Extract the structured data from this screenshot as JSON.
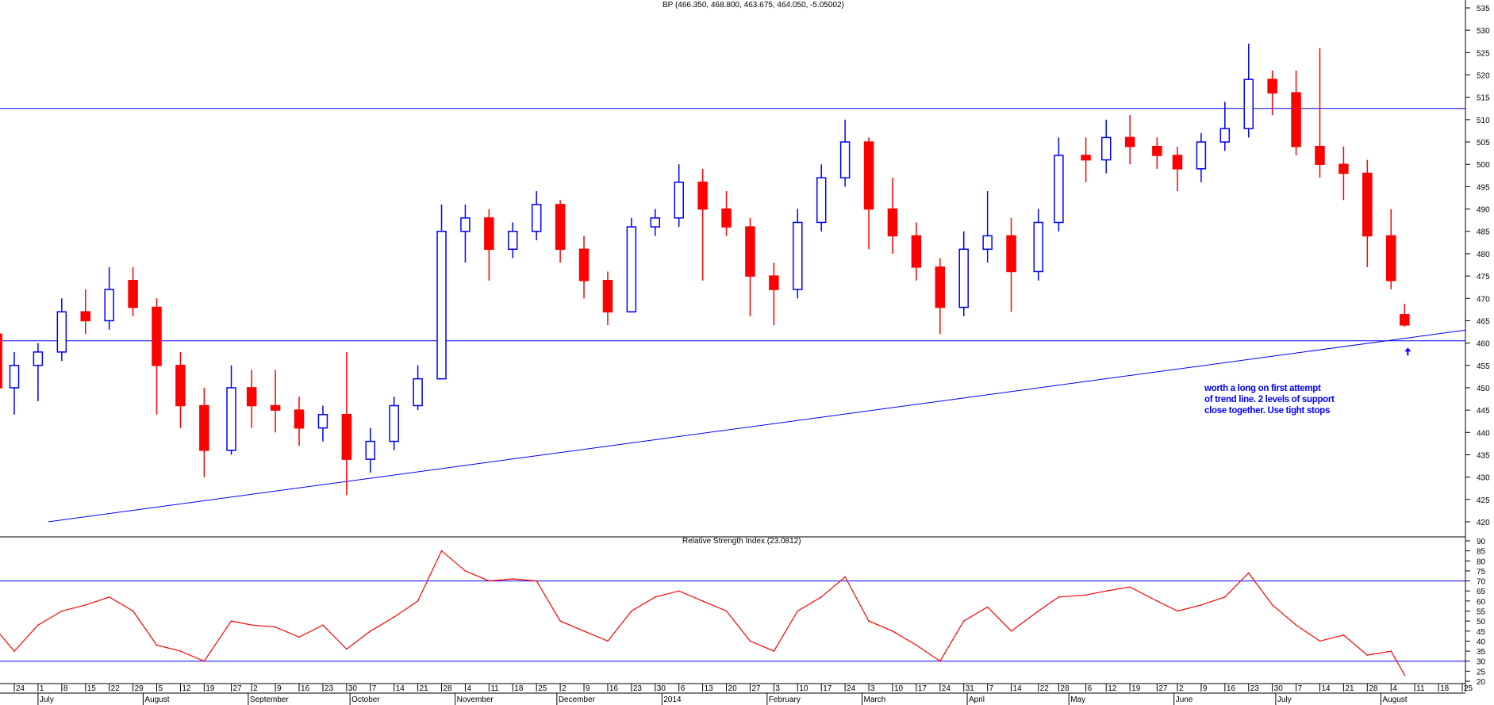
{
  "chart_data": [
    {
      "type": "candlestick",
      "title": "BP (466.350, 468.800, 463.675, 464.050, -5.05002)",
      "ylim": [
        417,
        537
      ],
      "yticks": [
        420,
        425,
        430,
        435,
        440,
        445,
        450,
        455,
        460,
        465,
        470,
        475,
        480,
        485,
        490,
        495,
        500,
        505,
        510,
        515,
        520,
        525,
        530,
        535
      ],
      "axis_position": "right",
      "colors": {
        "up": "#0000ff",
        "down": "#ff0000",
        "lines": "#0000ff"
      },
      "candles_columns": [
        "date",
        "open",
        "high",
        "low",
        "close"
      ],
      "candles": [
        [
          "2013-06-19",
          462,
          463,
          447,
          450
        ],
        [
          "2013-06-24",
          450,
          458,
          444,
          455
        ],
        [
          "2013-07-01",
          455,
          460,
          447,
          458
        ],
        [
          "2013-07-08",
          458,
          470,
          456,
          467
        ],
        [
          "2013-07-15",
          467,
          472,
          462,
          465
        ],
        [
          "2013-07-22",
          465,
          477,
          463,
          472
        ],
        [
          "2013-07-29",
          474,
          477,
          466,
          468
        ],
        [
          "2013-08-05",
          468,
          470,
          444,
          455
        ],
        [
          "2013-08-12",
          455,
          458,
          441,
          446
        ],
        [
          "2013-08-19",
          446,
          450,
          430,
          436
        ],
        [
          "2013-08-27",
          436,
          455,
          435,
          450
        ],
        [
          "2013-09-02",
          450,
          454,
          441,
          446
        ],
        [
          "2013-09-09",
          446,
          454,
          440,
          445
        ],
        [
          "2013-09-16",
          445,
          448,
          437,
          441
        ],
        [
          "2013-09-23",
          441,
          446,
          438,
          444
        ],
        [
          "2013-09-30",
          444,
          458,
          426,
          434
        ],
        [
          "2013-10-07",
          434,
          441,
          431,
          438
        ],
        [
          "2013-10-14",
          438,
          448,
          436,
          446
        ],
        [
          "2013-10-21",
          446,
          455,
          445,
          452
        ],
        [
          "2013-10-28",
          452,
          491,
          452,
          485
        ],
        [
          "2013-11-04",
          485,
          491,
          478,
          488
        ],
        [
          "2013-11-11",
          488,
          490,
          474,
          481
        ],
        [
          "2013-11-18",
          481,
          487,
          479,
          485
        ],
        [
          "2013-11-25",
          485,
          494,
          483,
          491
        ],
        [
          "2013-12-02",
          491,
          492,
          478,
          481
        ],
        [
          "2013-12-09",
          481,
          484,
          470,
          474
        ],
        [
          "2013-12-16",
          474,
          476,
          464,
          467
        ],
        [
          "2013-12-23",
          467,
          488,
          467,
          486
        ],
        [
          "2013-12-30",
          486,
          490,
          484,
          488
        ],
        [
          "2014-01-06",
          488,
          500,
          486,
          496
        ],
        [
          "2014-01-13",
          496,
          499,
          474,
          490
        ],
        [
          "2014-01-20",
          490,
          494,
          484,
          486
        ],
        [
          "2014-01-27",
          486,
          488,
          466,
          475
        ],
        [
          "2014-02-03",
          475,
          478,
          464,
          472
        ],
        [
          "2014-02-10",
          472,
          490,
          470,
          487
        ],
        [
          "2014-02-17",
          487,
          500,
          485,
          497
        ],
        [
          "2014-02-24",
          497,
          510,
          495,
          505
        ],
        [
          "2014-03-03",
          505,
          506,
          481,
          490
        ],
        [
          "2014-03-10",
          490,
          497,
          480,
          484
        ],
        [
          "2014-03-17",
          484,
          487,
          474,
          477
        ],
        [
          "2014-03-24",
          477,
          479,
          462,
          468
        ],
        [
          "2014-03-31",
          468,
          485,
          466,
          481
        ],
        [
          "2014-04-07",
          481,
          494,
          478,
          484
        ],
        [
          "2014-04-14",
          484,
          488,
          467,
          476
        ],
        [
          "2014-04-22",
          476,
          490,
          474,
          487
        ],
        [
          "2014-04-28",
          487,
          506,
          485,
          502
        ],
        [
          "2014-05-06",
          502,
          506,
          496,
          501
        ],
        [
          "2014-05-12",
          501,
          510,
          498,
          506
        ],
        [
          "2014-05-19",
          506,
          511,
          500,
          504
        ],
        [
          "2014-05-27",
          504,
          506,
          499,
          502
        ],
        [
          "2014-06-02",
          502,
          504,
          494,
          499
        ],
        [
          "2014-06-09",
          499,
          507,
          496,
          505
        ],
        [
          "2014-06-16",
          505,
          514,
          503,
          508
        ],
        [
          "2014-06-23",
          508,
          527,
          506,
          519
        ],
        [
          "2014-06-30",
          519,
          521,
          511,
          516
        ],
        [
          "2014-07-07",
          516,
          521,
          502,
          504
        ],
        [
          "2014-07-14",
          504,
          526,
          497,
          500
        ],
        [
          "2014-07-21",
          500,
          504,
          492,
          498
        ],
        [
          "2014-07-28",
          498,
          501,
          477,
          484
        ],
        [
          "2014-08-04",
          484,
          490,
          472,
          474
        ],
        [
          "2014-08-08",
          466.35,
          468.8,
          463.675,
          464.05
        ]
      ],
      "horizontal_lines": [
        512.5,
        460.5
      ],
      "trend_line": [
        [
          "2013-07-04",
          420
        ],
        [
          "2014-08-25",
          462.8
        ]
      ],
      "annotation": {
        "lines": [
          "worth a long on first attempt",
          "of trend line. 2 levels of support",
          "close together. Use tight stops"
        ],
        "arrow_at": [
          "2014-08-08",
          459
        ]
      }
    },
    {
      "type": "line",
      "title": "Relative Strength Index (23.0812)",
      "ylim": [
        18,
        92
      ],
      "yticks": [
        20,
        25,
        30,
        35,
        40,
        45,
        50,
        55,
        60,
        65,
        70,
        75,
        80,
        85,
        90
      ],
      "horizontal_lines": [
        70,
        30
      ],
      "color": "#ff0000",
      "values": [
        45,
        35,
        48,
        55,
        58,
        62,
        55,
        38,
        35,
        30,
        50,
        48,
        47,
        42,
        48,
        36,
        45,
        52,
        60,
        85,
        75,
        70,
        71,
        70,
        50,
        45,
        40,
        55,
        62,
        65,
        60,
        55,
        40,
        35,
        55,
        62,
        72,
        50,
        45,
        38,
        30,
        50,
        57,
        45,
        55,
        62,
        63,
        65,
        67,
        60,
        55,
        58,
        62,
        74,
        58,
        48,
        40,
        43,
        33,
        35,
        23.08
      ]
    }
  ],
  "x_axis": {
    "day_ticks": [
      [
        "2013-06-24",
        "24"
      ],
      [
        "2013-07-01",
        "1"
      ],
      [
        "2013-07-08",
        "8"
      ],
      [
        "2013-07-15",
        "15"
      ],
      [
        "2013-07-22",
        "22"
      ],
      [
        "2013-07-29",
        "29"
      ],
      [
        "2013-08-05",
        "5"
      ],
      [
        "2013-08-12",
        "12"
      ],
      [
        "2013-08-19",
        "19"
      ],
      [
        "2013-08-27",
        "27"
      ],
      [
        "2013-09-02",
        "2"
      ],
      [
        "2013-09-09",
        "9"
      ],
      [
        "2013-09-16",
        "16"
      ],
      [
        "2013-09-23",
        "23"
      ],
      [
        "2013-09-30",
        "30"
      ],
      [
        "2013-10-07",
        "7"
      ],
      [
        "2013-10-14",
        "14"
      ],
      [
        "2013-10-21",
        "21"
      ],
      [
        "2013-10-28",
        "28"
      ],
      [
        "2013-11-04",
        "4"
      ],
      [
        "2013-11-11",
        "11"
      ],
      [
        "2013-11-18",
        "18"
      ],
      [
        "2013-11-25",
        "25"
      ],
      [
        "2013-12-02",
        "2"
      ],
      [
        "2013-12-09",
        "9"
      ],
      [
        "2013-12-16",
        "16"
      ],
      [
        "2013-12-23",
        "23"
      ],
      [
        "2013-12-30",
        "30"
      ],
      [
        "2014-01-06",
        "6"
      ],
      [
        "2014-01-13",
        "13"
      ],
      [
        "2014-01-20",
        "20"
      ],
      [
        "2014-01-27",
        "27"
      ],
      [
        "2014-02-03",
        "3"
      ],
      [
        "2014-02-10",
        "10"
      ],
      [
        "2014-02-17",
        "17"
      ],
      [
        "2014-02-24",
        "24"
      ],
      [
        "2014-03-03",
        "3"
      ],
      [
        "2014-03-10",
        "10"
      ],
      [
        "2014-03-17",
        "17"
      ],
      [
        "2014-03-24",
        "24"
      ],
      [
        "2014-03-31",
        "31"
      ],
      [
        "2014-04-07",
        "7"
      ],
      [
        "2014-04-14",
        "14"
      ],
      [
        "2014-04-22",
        "22"
      ],
      [
        "2014-04-28",
        "28"
      ],
      [
        "2014-05-06",
        "6"
      ],
      [
        "2014-05-12",
        "12"
      ],
      [
        "2014-05-19",
        "19"
      ],
      [
        "2014-05-27",
        "27"
      ],
      [
        "2014-06-02",
        "2"
      ],
      [
        "2014-06-09",
        "9"
      ],
      [
        "2014-06-16",
        "16"
      ],
      [
        "2014-06-23",
        "23"
      ],
      [
        "2014-06-30",
        "30"
      ],
      [
        "2014-07-07",
        "7"
      ],
      [
        "2014-07-14",
        "14"
      ],
      [
        "2014-07-21",
        "21"
      ],
      [
        "2014-07-28",
        "28"
      ],
      [
        "2014-08-04",
        "4"
      ],
      [
        "2014-08-11",
        "11"
      ],
      [
        "2014-08-18",
        "18"
      ],
      [
        "2014-08-25",
        "25"
      ]
    ],
    "month_labels": [
      [
        "2013-07-01",
        "July"
      ],
      [
        "2013-08-01",
        "August"
      ],
      [
        "2013-09-01",
        "September"
      ],
      [
        "2013-10-01",
        "October"
      ],
      [
        "2013-11-01",
        "November"
      ],
      [
        "2013-12-01",
        "December"
      ],
      [
        "2014-01-01",
        "2014"
      ],
      [
        "2014-02-01",
        "February"
      ],
      [
        "2014-03-01",
        "March"
      ],
      [
        "2014-04-01",
        "April"
      ],
      [
        "2014-05-01",
        "May"
      ],
      [
        "2014-06-01",
        "June"
      ],
      [
        "2014-07-01",
        "July"
      ],
      [
        "2014-08-01",
        "August"
      ]
    ]
  }
}
